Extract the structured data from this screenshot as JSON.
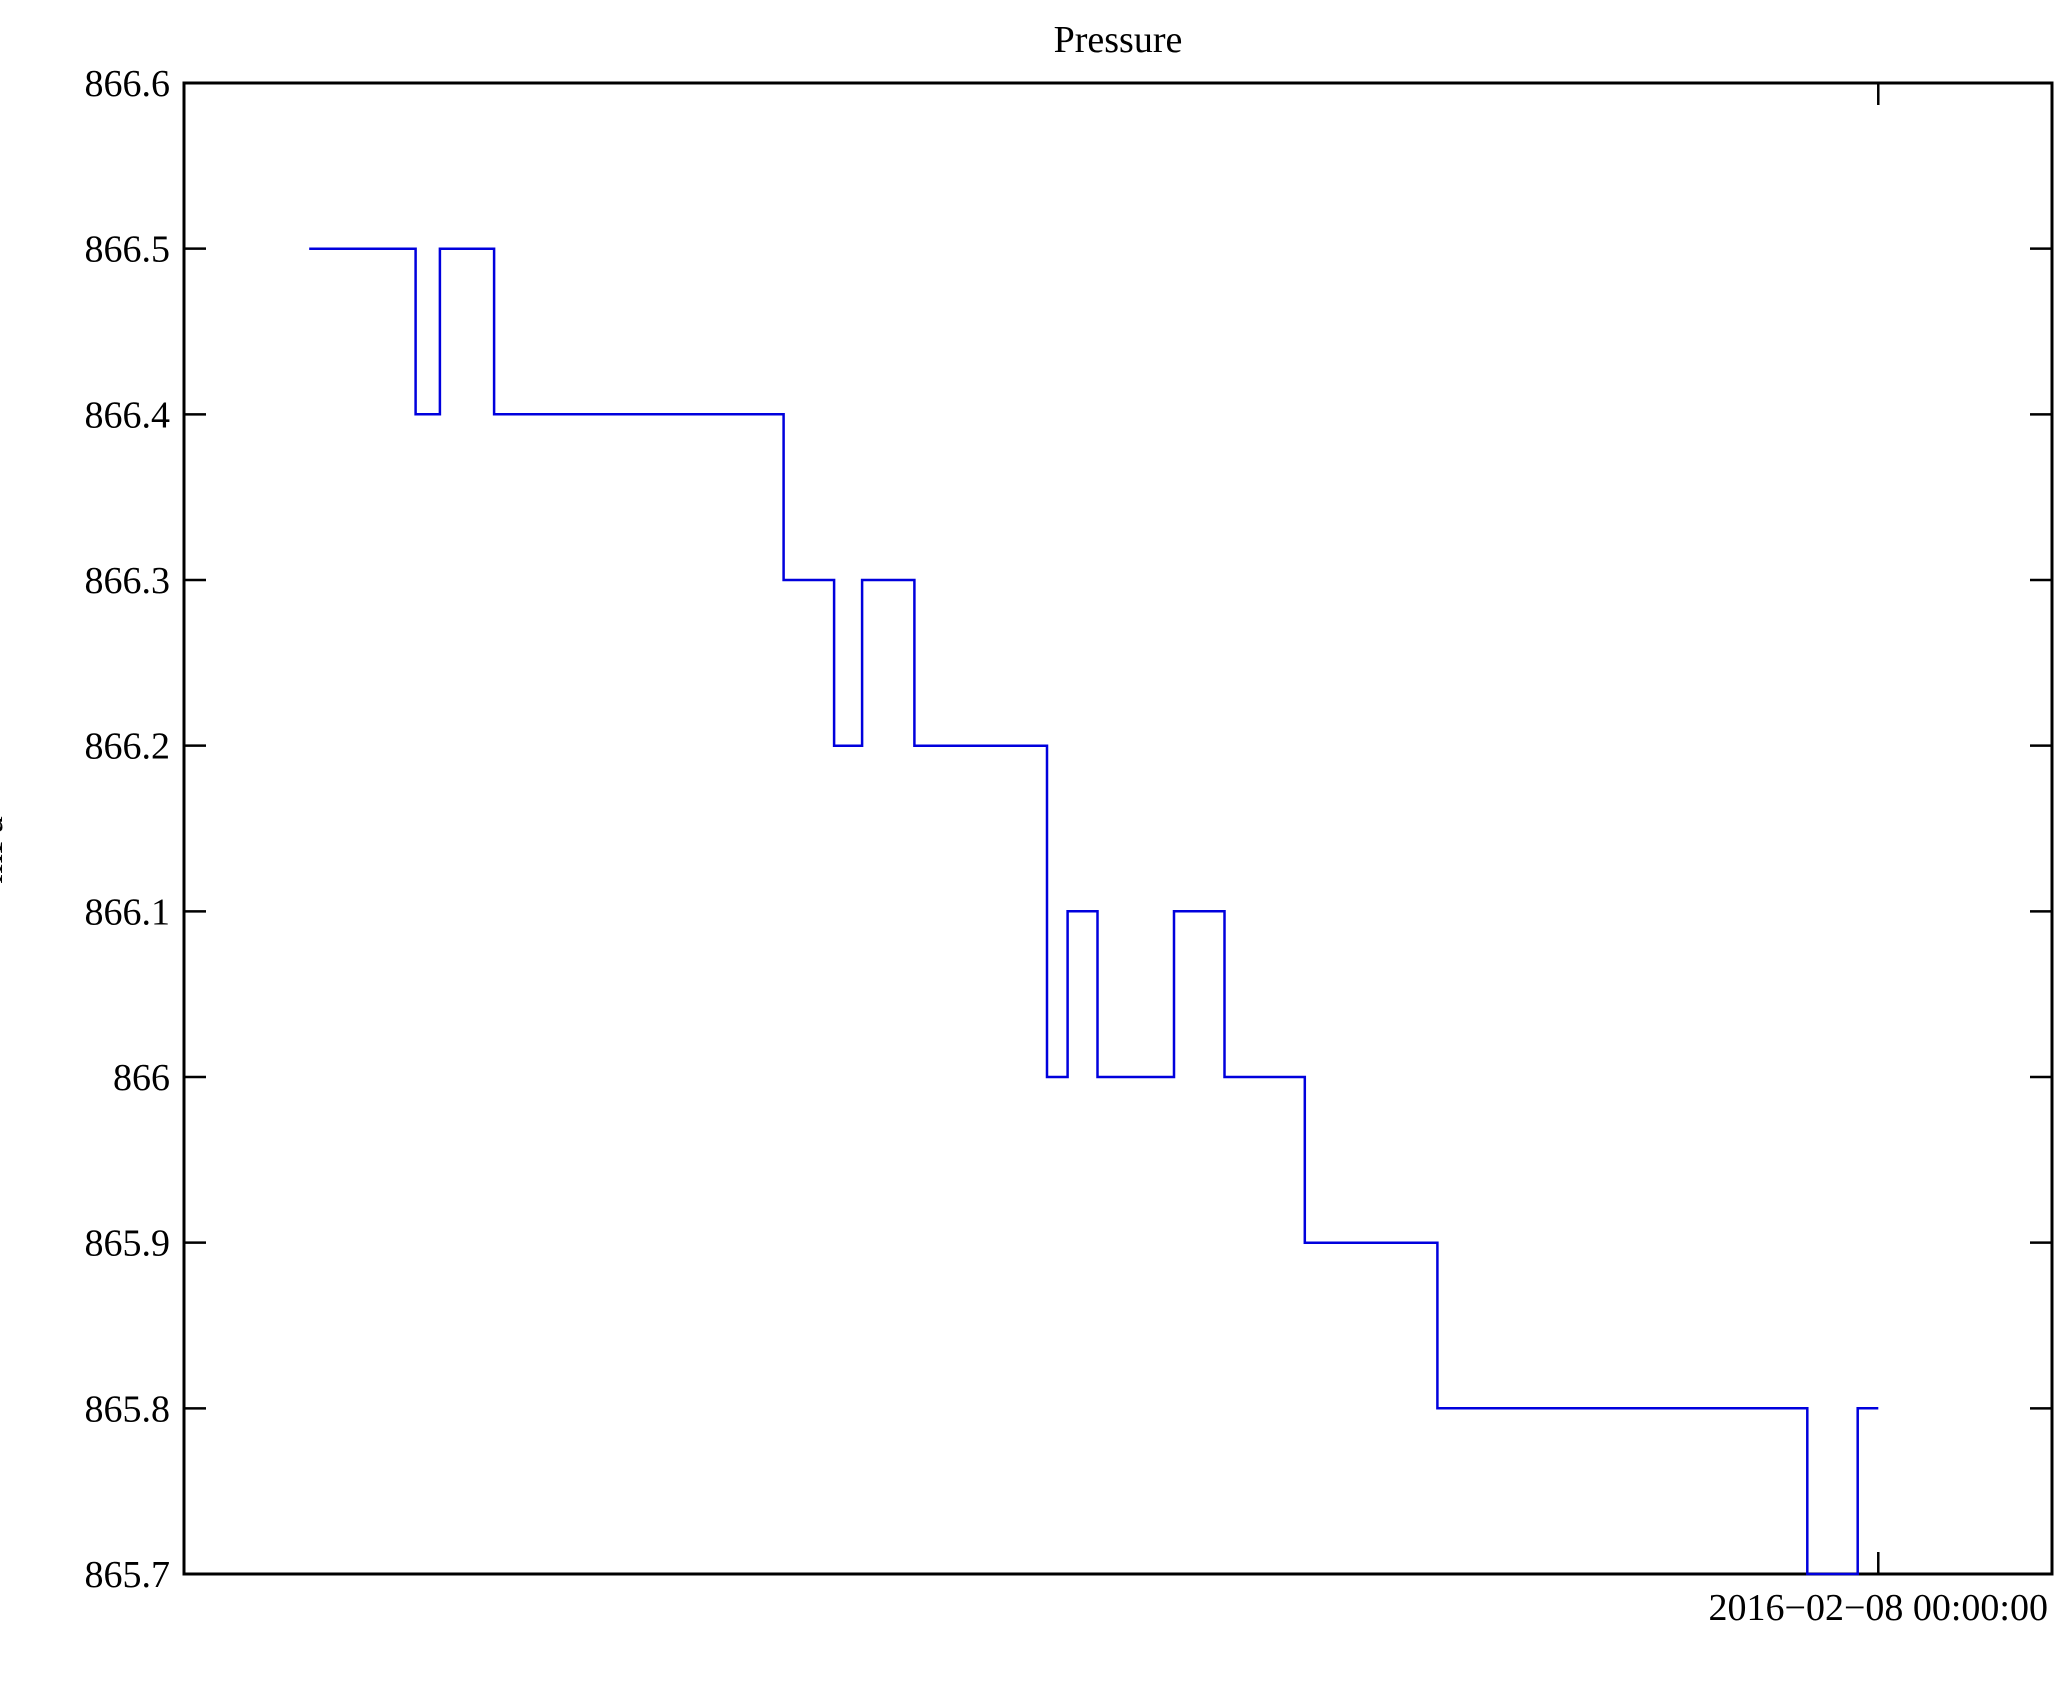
{
  "chart_data": {
    "type": "line",
    "subtype": "step",
    "title": "Pressure",
    "xlabel": "",
    "ylabel": "mPa",
    "ylim": [
      865.7,
      866.6
    ],
    "grid": false,
    "legend": "none",
    "line_color": "#0000dd",
    "frame_color": "#000000",
    "ytick_values": [
      866.6,
      866.5,
      866.4,
      866.3,
      866.2,
      866.1,
      866.0,
      865.9,
      865.8,
      865.7
    ],
    "ytick_labels": [
      "866.6",
      "866.5",
      "866.4",
      "866.3",
      "866.2",
      "866.1",
      "866",
      "865.9",
      "865.8",
      "865.7"
    ],
    "xtick": {
      "label": "2016−02−08 00:00:00",
      "position_frac": 0.907
    },
    "series": [
      {
        "name": "pressure",
        "unit": "mPa",
        "steps": [
          {
            "x0": 0.067,
            "x1": 0.124,
            "y": 866.5
          },
          {
            "x0": 0.124,
            "x1": 0.137,
            "y": 866.4
          },
          {
            "x0": 0.137,
            "x1": 0.166,
            "y": 866.5
          },
          {
            "x0": 0.166,
            "x1": 0.321,
            "y": 866.4
          },
          {
            "x0": 0.321,
            "x1": 0.348,
            "y": 866.3
          },
          {
            "x0": 0.348,
            "x1": 0.363,
            "y": 866.2
          },
          {
            "x0": 0.363,
            "x1": 0.391,
            "y": 866.3
          },
          {
            "x0": 0.391,
            "x1": 0.462,
            "y": 866.2
          },
          {
            "x0": 0.462,
            "x1": 0.473,
            "y": 866.0
          },
          {
            "x0": 0.473,
            "x1": 0.489,
            "y": 866.1
          },
          {
            "x0": 0.489,
            "x1": 0.53,
            "y": 866.0
          },
          {
            "x0": 0.53,
            "x1": 0.557,
            "y": 866.1
          },
          {
            "x0": 0.557,
            "x1": 0.6,
            "y": 866.0
          },
          {
            "x0": 0.6,
            "x1": 0.671,
            "y": 865.9
          },
          {
            "x0": 0.671,
            "x1": 0.869,
            "y": 865.8
          },
          {
            "x0": 0.869,
            "x1": 0.896,
            "y": 865.7
          },
          {
            "x0": 0.896,
            "x1": 0.907,
            "y": 865.8
          }
        ]
      }
    ]
  }
}
